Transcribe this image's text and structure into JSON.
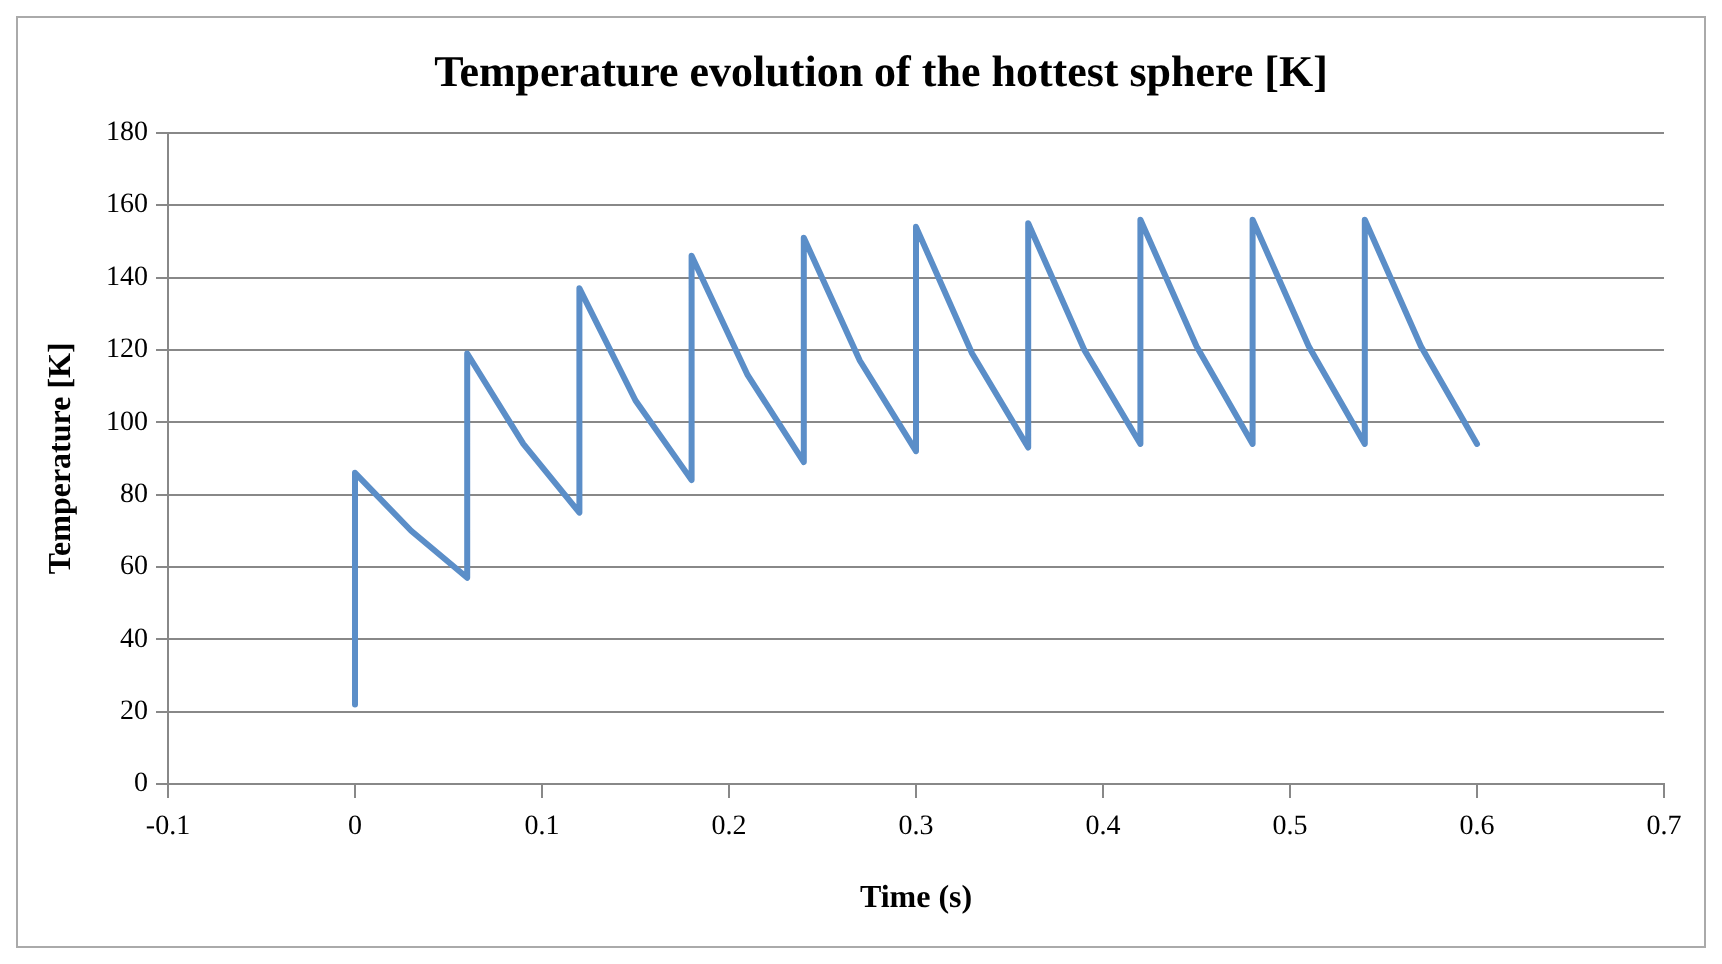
{
  "chart_data": {
    "type": "line",
    "title": "Temperature evolution of the hottest sphere [K]",
    "xlabel": "Time (s)",
    "ylabel": "Temperature [K]",
    "x": [
      0,
      0,
      0.03,
      0.06,
      0.06,
      0.09,
      0.12,
      0.12,
      0.15,
      0.18,
      0.18,
      0.21,
      0.24,
      0.24,
      0.27,
      0.3,
      0.3,
      0.33,
      0.36,
      0.36,
      0.39,
      0.42,
      0.42,
      0.45,
      0.48,
      0.48,
      0.51,
      0.54,
      0.54,
      0.57,
      0.6
    ],
    "series": [
      {
        "color": "#5b8ec8",
        "values": [
          22,
          86,
          70,
          57,
          119,
          94,
          75,
          137,
          106,
          84,
          146,
          113,
          89,
          151,
          117,
          92,
          154,
          119,
          93,
          155,
          120,
          94,
          156,
          121,
          94,
          156,
          121,
          94,
          156,
          121,
          94
        ]
      }
    ],
    "xlim": [
      -0.1,
      0.7
    ],
    "xticks": [
      -0.1,
      0,
      0.1,
      0.2,
      0.3,
      0.4,
      0.5,
      0.6,
      0.7
    ],
    "ylim": [
      0,
      180
    ],
    "yticks": [
      0,
      20,
      40,
      60,
      80,
      100,
      120,
      140,
      160,
      180
    ],
    "grid": "y",
    "legend": false,
    "marker": "none",
    "line_style": "solid"
  }
}
